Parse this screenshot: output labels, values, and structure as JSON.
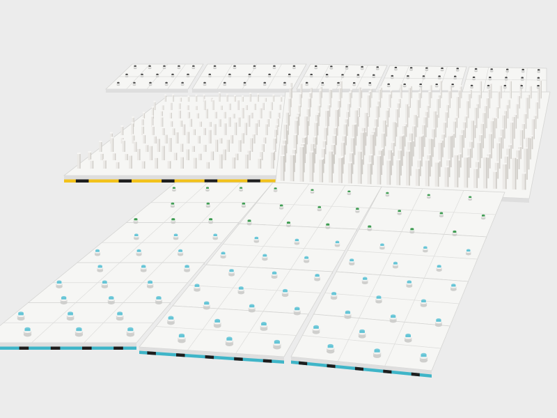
{
  "scene": {
    "subject": "render-of-modular-tile-grid",
    "colors": {
      "background": "#ececec",
      "plate_top": "#f6f6f4",
      "plate_front": "#dedede",
      "plate_side": "#cfcfcf",
      "stud_blue": "#63c4d6",
      "stud_green": "#3b9a4f",
      "stud_white": "#e9e9e9",
      "stud_dark": "#3a3a3a",
      "tower": "#ebe9e6",
      "tower_shade": "#cfccc7",
      "stripe_cyan": "#3fb5c8",
      "stripe_black": "#1e1e1e",
      "stripe_yellow": "#f2c21b"
    }
  }
}
